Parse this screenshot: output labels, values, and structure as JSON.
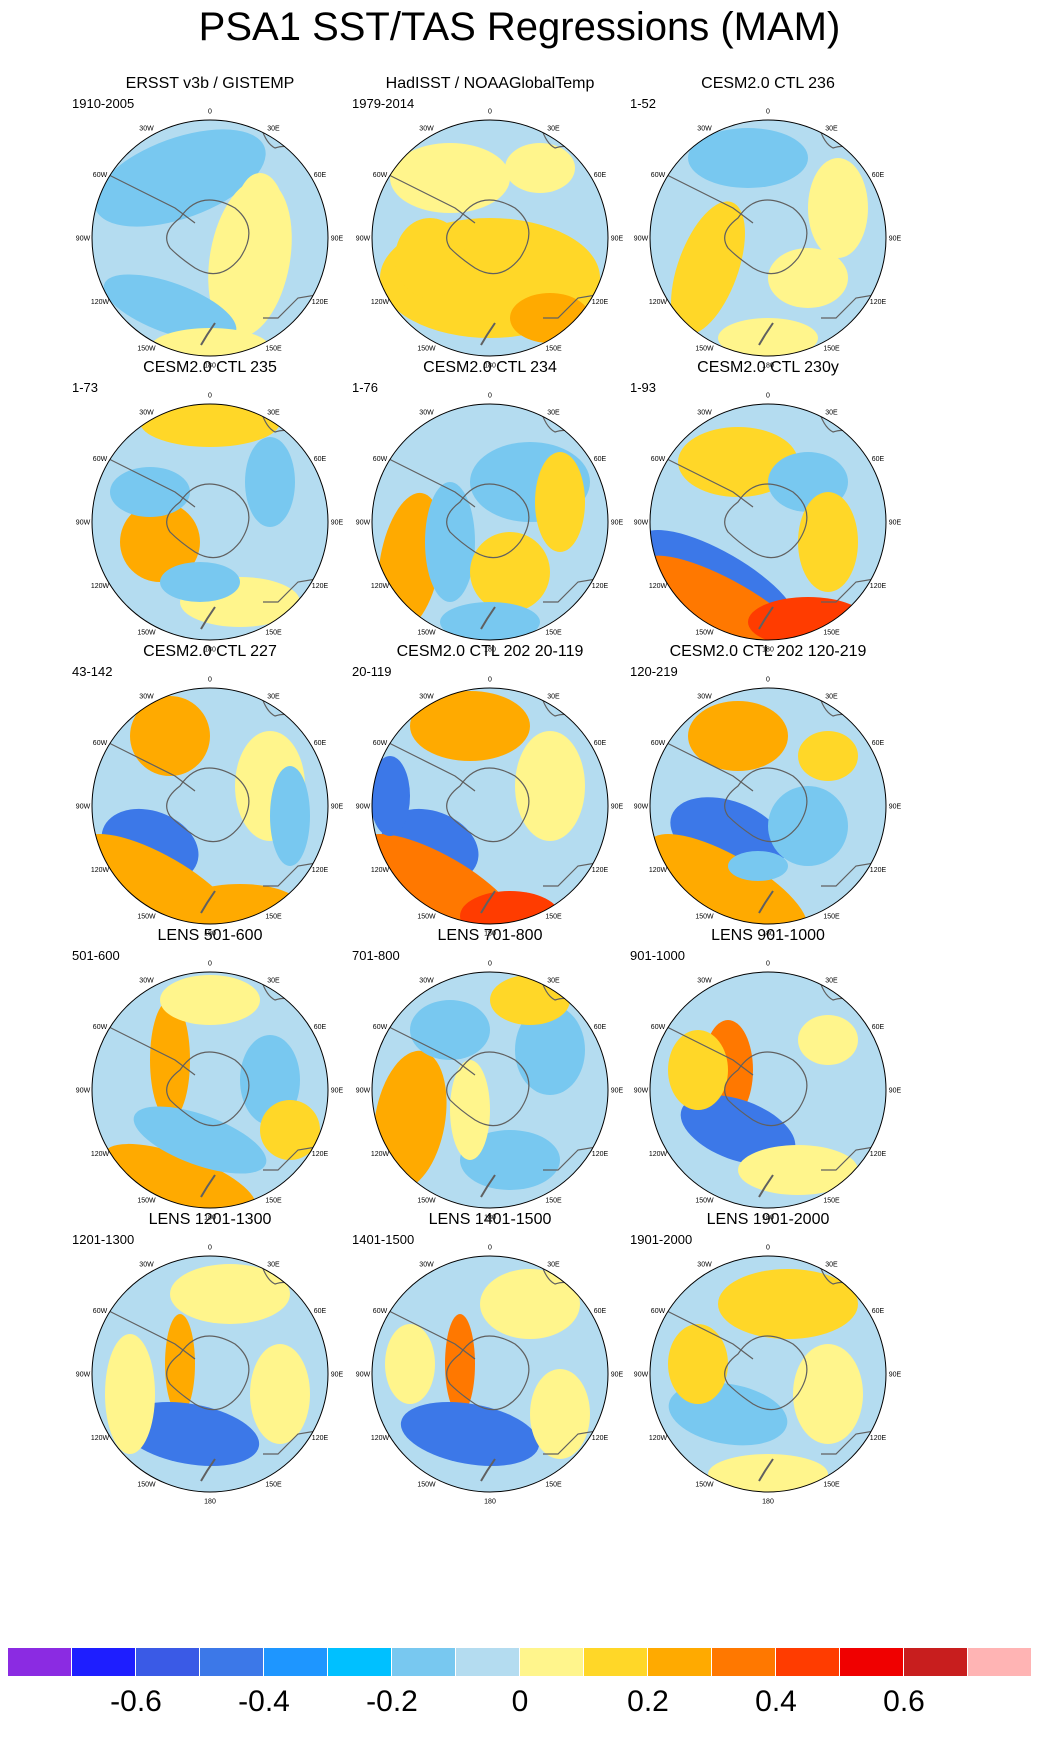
{
  "title": "PSA1 SST/TAS Regressions (MAM)",
  "lon_labels": [
    "0",
    "30E",
    "60E",
    "90E",
    "120E",
    "150E",
    "180",
    "150W",
    "120W",
    "90W",
    "60W",
    "30W"
  ],
  "panels": [
    {
      "title": "ERSST v3b / GISTEMP",
      "period": "1910-2005",
      "scheme": 0
    },
    {
      "title": "HadISST / NOAAGlobalTemp",
      "period": "1979-2014",
      "scheme": 1
    },
    {
      "title": "CESM2.0 CTL 236",
      "period": "1-52",
      "scheme": 2
    },
    {
      "title": "CESM2.0 CTL 235",
      "period": "1-73",
      "scheme": 3
    },
    {
      "title": "CESM2.0 CTL 234",
      "period": "1-76",
      "scheme": 4
    },
    {
      "title": "CESM2.0 CTL 230y",
      "period": "1-93",
      "scheme": 5
    },
    {
      "title": "CESM2.0 CTL 227",
      "period": "43-142",
      "scheme": 6
    },
    {
      "title": "CESM2.0 CTL 202 20-119",
      "period": "20-119",
      "scheme": 7
    },
    {
      "title": "CESM2.0 CTL 202 120-219",
      "period": "120-219",
      "scheme": 8
    },
    {
      "title": "LENS 501-600",
      "period": "501-600",
      "scheme": 9
    },
    {
      "title": "LENS 701-800",
      "period": "701-800",
      "scheme": 10
    },
    {
      "title": "LENS 901-1000",
      "period": "901-1000",
      "scheme": 11
    },
    {
      "title": "LENS 1201-1300",
      "period": "1201-1300",
      "scheme": 12
    },
    {
      "title": "LENS 1401-1500",
      "period": "1401-1500",
      "scheme": 13
    },
    {
      "title": "LENS 1901-2000",
      "period": "1901-2000",
      "scheme": 14
    }
  ],
  "colorbar": {
    "colors": [
      "#8b2be2",
      "#1e1eff",
      "#3a5ae6",
      "#3c78e8",
      "#1e96ff",
      "#00c0ff",
      "#78c8f0",
      "#b4dcf0",
      "#fff58c",
      "#ffd728",
      "#ffaa00",
      "#ff7800",
      "#ff3c00",
      "#f00000",
      "#c81e1e",
      "#ffb4b4"
    ],
    "tick_labels": [
      "-0.6",
      "-0.4",
      "-0.2",
      "0",
      "0.2",
      "0.4",
      "0.6"
    ]
  },
  "palette": {
    "pale_blue": "#b4dcf0",
    "pale_yellow": "#fff58c",
    "sky": "#78c8f0",
    "blue": "#3c78e8",
    "deep_blue": "#1e1eff",
    "yellow": "#ffd728",
    "orange": "#ffaa00",
    "dark_orange": "#ff7800",
    "red": "#ff3c00",
    "land": "#ffffff",
    "coast": "#606060"
  }
}
